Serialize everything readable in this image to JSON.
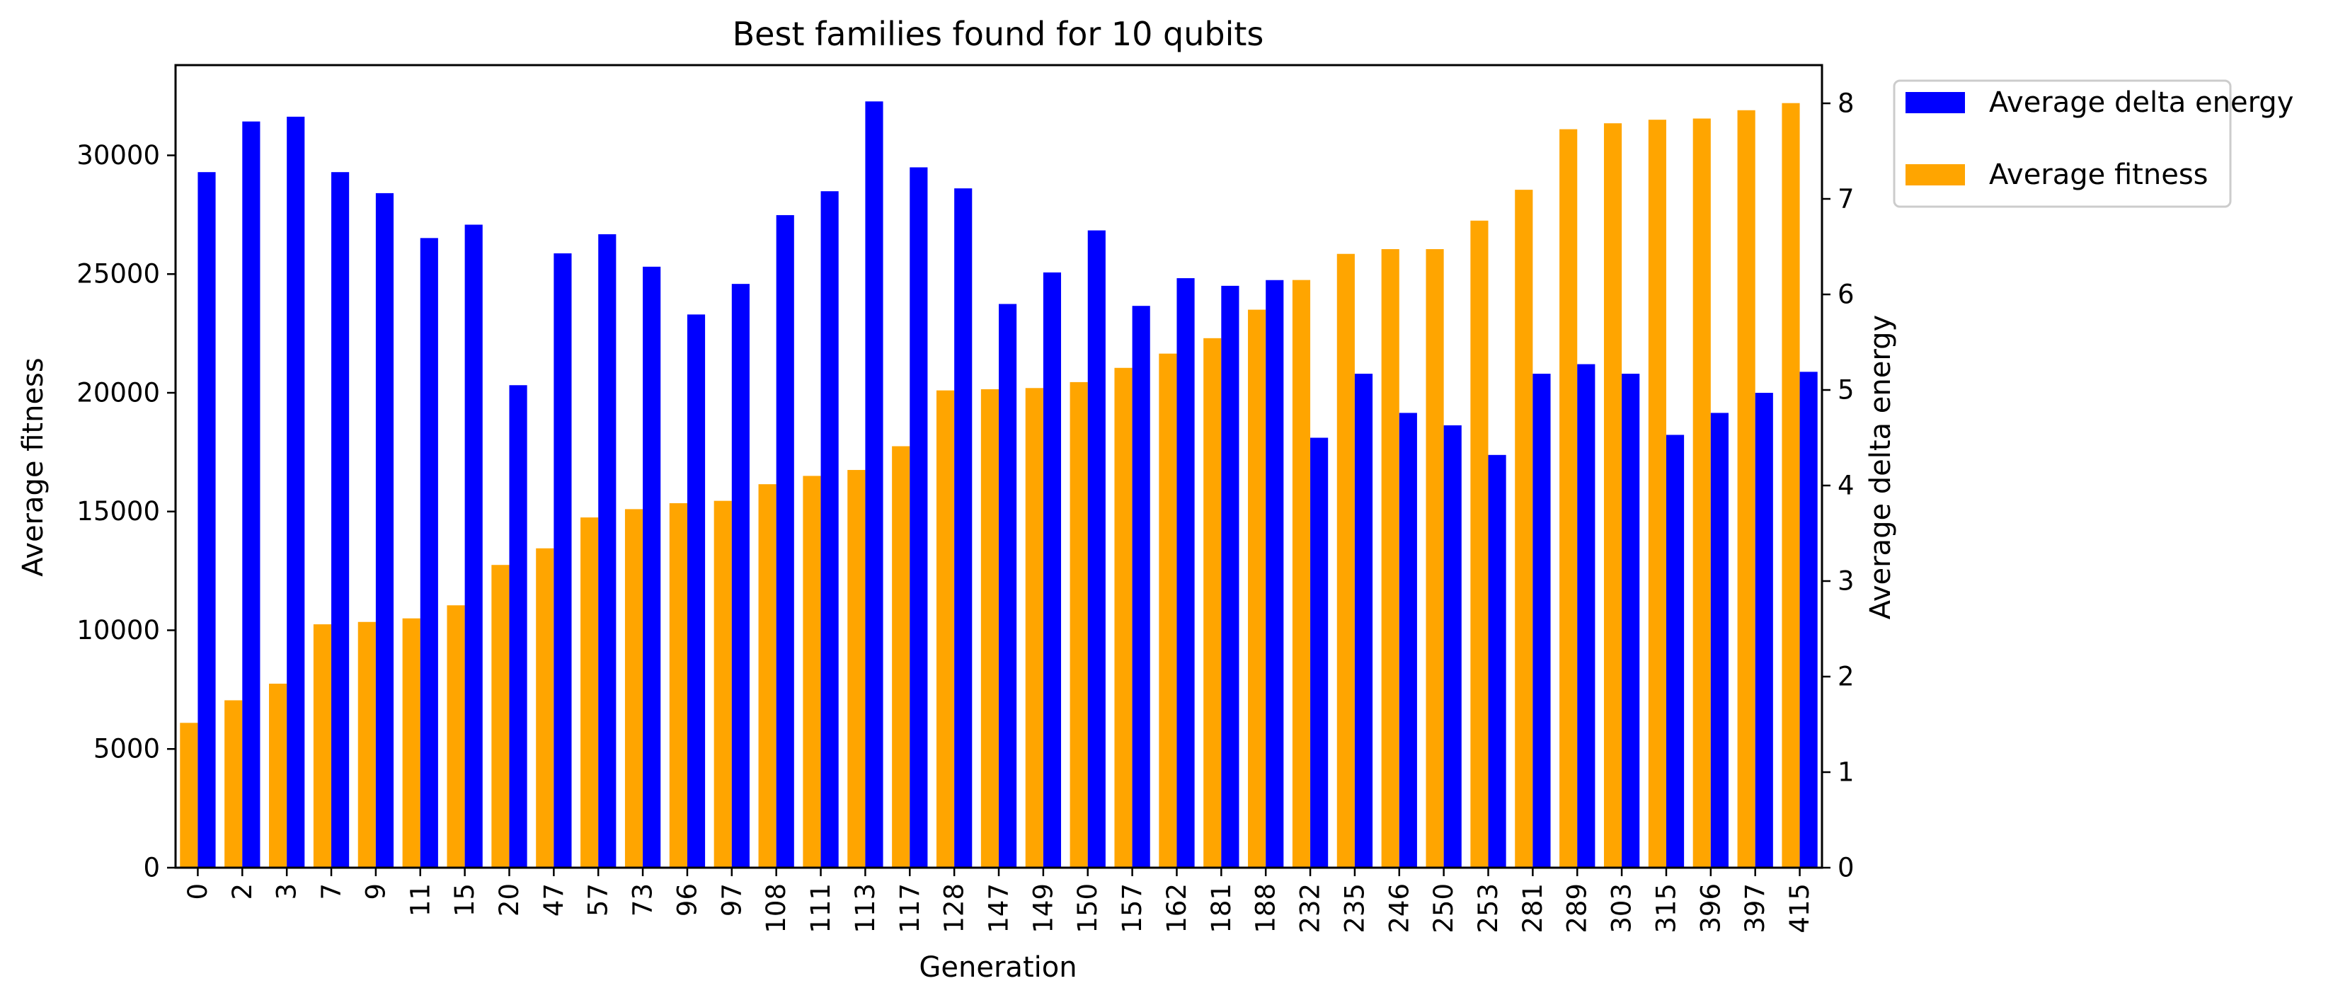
{
  "chart_data": {
    "type": "bar",
    "title": "Best families found for 10 qubits",
    "xlabel": "Generation",
    "ylabel_left": "Average fitness",
    "ylabel_right": "Average delta energy",
    "categories": [
      "0",
      "2",
      "3",
      "7",
      "9",
      "11",
      "15",
      "20",
      "47",
      "57",
      "73",
      "96",
      "97",
      "108",
      "111",
      "113",
      "117",
      "128",
      "147",
      "149",
      "150",
      "157",
      "162",
      "181",
      "188",
      "232",
      "235",
      "246",
      "250",
      "253",
      "281",
      "289",
      "303",
      "315",
      "396",
      "397",
      "415"
    ],
    "series": [
      {
        "name": "Average fitness",
        "axis": "left",
        "color": "#FFA500",
        "values": [
          6100,
          7050,
          7750,
          10250,
          10350,
          10500,
          11050,
          12750,
          13450,
          14750,
          15100,
          15350,
          15450,
          16150,
          16500,
          16750,
          17750,
          20100,
          20150,
          20200,
          20450,
          21050,
          21650,
          22300,
          23500,
          24750,
          25850,
          26050,
          26050,
          27250,
          28550,
          31100,
          31350,
          31500,
          31550,
          31900,
          32200
        ]
      },
      {
        "name": "Average delta energy",
        "axis": "right",
        "color": "#0000FF",
        "values": [
          7.28,
          7.81,
          7.86,
          7.28,
          7.06,
          6.59,
          6.73,
          5.05,
          6.43,
          6.63,
          6.29,
          5.79,
          6.11,
          6.83,
          7.08,
          8.02,
          7.33,
          7.11,
          5.9,
          6.23,
          6.67,
          5.88,
          6.17,
          6.09,
          6.15,
          4.5,
          5.17,
          4.76,
          4.63,
          4.32,
          5.17,
          5.27,
          5.17,
          4.53,
          4.76,
          4.97,
          5.19
        ]
      }
    ],
    "ylim_left": [
      0,
      33800
    ],
    "yticks_left": [
      "0",
      "5000",
      "10000",
      "15000",
      "20000",
      "25000",
      "30000"
    ],
    "ylim_right": [
      0,
      8.4
    ],
    "yticks_right": [
      "0",
      "1",
      "2",
      "3",
      "4",
      "5",
      "6",
      "7",
      "8"
    ],
    "grid": false,
    "legend_placement": "outside upper right"
  }
}
